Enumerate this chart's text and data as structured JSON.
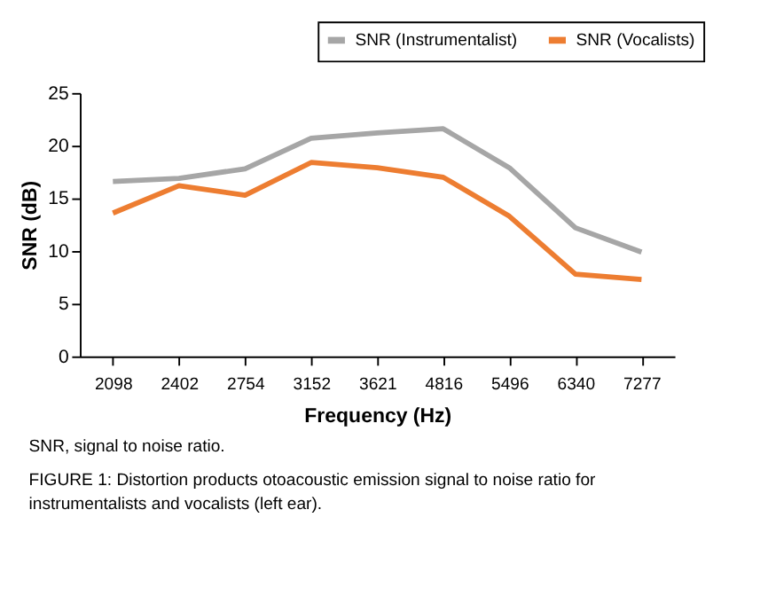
{
  "chart_data": {
    "type": "line",
    "categories": [
      "2098",
      "2402",
      "2754",
      "3152",
      "3621",
      "4816",
      "5496",
      "6340",
      "7277"
    ],
    "series": [
      {
        "name": "SNR (Instrumentalist)",
        "color": "#a6a6a6",
        "values": [
          16.6,
          16.9,
          17.8,
          20.7,
          21.2,
          21.6,
          17.9,
          12.2,
          9.9
        ]
      },
      {
        "name": "SNR (Vocalists)",
        "color": "#ed7d31",
        "values": [
          13.6,
          16.2,
          15.3,
          18.4,
          17.9,
          17.0,
          13.3,
          7.8,
          7.3
        ]
      }
    ],
    "xlabel": "Frequency (Hz)",
    "ylabel": "SNR (dB)",
    "ylim": [
      0,
      25
    ],
    "yticks": [
      0,
      5,
      10,
      15,
      20,
      25
    ],
    "grid": false,
    "legend": "top right",
    "marker": "none",
    "line_style": "solid",
    "annotations": [
      "SNR, signal to noise ratio.",
      "FIGURE 1: Distortion products otoacoustic emission signal to noise ratio for instrumentalists and vocalists (left ear)."
    ]
  }
}
